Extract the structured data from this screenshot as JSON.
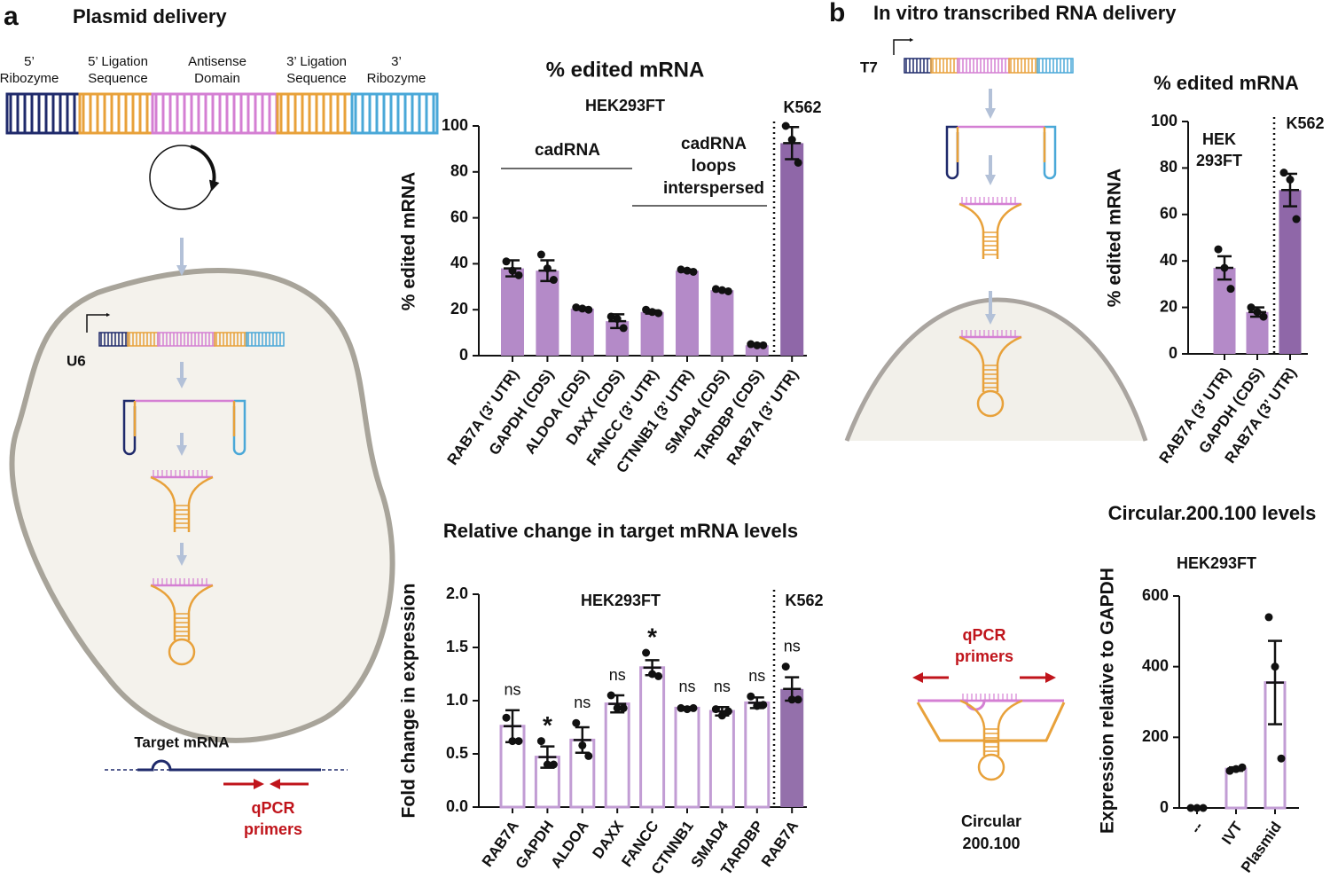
{
  "panel_a": {
    "letter": "a",
    "title": "Plasmid delivery",
    "construct_labels": [
      [
        "5’",
        "Ribozyme"
      ],
      [
        "5’ Ligation",
        "Sequence"
      ],
      [
        "Antisense",
        "Domain"
      ],
      [
        "3’ Ligation",
        "Sequence"
      ],
      [
        "3’",
        "Ribozyme"
      ]
    ],
    "promoter": "U6",
    "target_label": "Target mRNA",
    "primer_label": [
      "qPCR",
      "primers"
    ]
  },
  "panel_b": {
    "letter": "b",
    "title": "In vitro transcribed RNA delivery",
    "promoter": "T7",
    "primer_label": [
      "qPCR",
      "primers"
    ],
    "construct_label": [
      "Circular",
      "200.100"
    ]
  },
  "chart_data": [
    {
      "type": "bar",
      "title": "% edited mRNA",
      "subtitle": [
        "HEK293FT"
      ],
      "annotation": "K562",
      "ylabel": "% edited mRNA",
      "group_labels": [
        [
          "cadRNA"
        ],
        [
          "cadRNA",
          "loops",
          "interspersed"
        ]
      ],
      "categories": [
        "RAB7A (3’ UTR)",
        "GAPDH (CDS)",
        "ALDOA (CDS)",
        "DAXX (CDS)",
        "FANCC (3’ UTR)",
        "CTNNB1 (3’ UTR)",
        "SMAD4 (CDS)",
        "TARDBP (CDS)",
        "RAB7A (3’ UTR)"
      ],
      "values": [
        38,
        37,
        20.5,
        15,
        19,
        37,
        28.5,
        4.5,
        92.5
      ],
      "errors": [
        3.5,
        4.5,
        0.5,
        3,
        0.7,
        0.5,
        0.4,
        0.3,
        7
      ],
      "points": [
        [
          41,
          37,
          35
        ],
        [
          44,
          38,
          33
        ],
        [
          21,
          20.5,
          20
        ],
        [
          17,
          16,
          12
        ],
        [
          20,
          19,
          18.5
        ],
        [
          37.5,
          37,
          36.5
        ],
        [
          29,
          28.5,
          28
        ],
        [
          5,
          4.5,
          4.5
        ],
        [
          100,
          94,
          84
        ]
      ],
      "colors": [
        "#b48ac8",
        "#b48ac8",
        "#b48ac8",
        "#b48ac8",
        "#b48ac8",
        "#b48ac8",
        "#b48ac8",
        "#b48ac8",
        "#8f67a8"
      ],
      "bar_styles": [
        "filled",
        "filled",
        "filled",
        "filled",
        "filled",
        "filled",
        "filled",
        "filled",
        "filled"
      ],
      "ylim": [
        0,
        100
      ],
      "yticks": [
        0,
        20,
        40,
        60,
        80,
        100
      ]
    },
    {
      "type": "bar",
      "title": "Relative change in target mRNA levels",
      "subtitle": [
        "HEK293FT"
      ],
      "annotation": "K562",
      "ylabel": "Fold change in expression",
      "categories": [
        "RAB7A",
        "GAPDH",
        "ALDOA",
        "DAXX",
        "FANCC",
        "CTNNB1",
        "SMAD4",
        "TARDBP",
        "RAB7A"
      ],
      "values": [
        0.76,
        0.47,
        0.63,
        0.97,
        1.31,
        0.93,
        0.9,
        0.98,
        1.11
      ],
      "errors": [
        0.15,
        0.1,
        0.12,
        0.08,
        0.07,
        0.01,
        0.04,
        0.05,
        0.11
      ],
      "points": [
        [
          0.84,
          0.62,
          0.62
        ],
        [
          0.62,
          0.4,
          0.4
        ],
        [
          0.79,
          0.58,
          0.48
        ],
        [
          1.05,
          0.93,
          0.93
        ],
        [
          1.45,
          1.25,
          1.23
        ],
        [
          0.93,
          0.92,
          0.93
        ],
        [
          0.92,
          0.86,
          0.9
        ],
        [
          1.04,
          0.95,
          0.96
        ],
        [
          1.32,
          1.01,
          1.01
        ]
      ],
      "significance": [
        "ns",
        "*",
        "ns",
        "ns",
        "*",
        "ns",
        "ns",
        "ns",
        "ns"
      ],
      "colors": [
        "#c29dd4",
        "#c29dd4",
        "#c29dd4",
        "#c29dd4",
        "#c29dd4",
        "#c29dd4",
        "#c29dd4",
        "#c29dd4",
        "#9470ab"
      ],
      "bar_styles": [
        "outline",
        "outline",
        "outline",
        "outline",
        "outline",
        "outline",
        "outline",
        "outline",
        "filled"
      ],
      "ylim": [
        0,
        2
      ],
      "yticks": [
        {
          "value": 0,
          "label": "0.0"
        },
        {
          "value": 0.5,
          "label": "0.5"
        },
        {
          "value": 1,
          "label": "1.0"
        },
        {
          "value": 1.5,
          "label": "1.5"
        },
        {
          "value": 2,
          "label": "2.0"
        }
      ]
    },
    {
      "type": "bar",
      "title": "% edited mRNA",
      "subtitle": [
        "HEK",
        "293FT"
      ],
      "annotation": "K562",
      "ylabel": "% edited mRNA",
      "categories": [
        "RAB7A (3’ UTR)",
        "GAPDH (CDS)",
        "RAB7A (3’ UTR)"
      ],
      "values": [
        37,
        18,
        70.5
      ],
      "errors": [
        5,
        2,
        7
      ],
      "points": [
        [
          45,
          37,
          28
        ],
        [
          20,
          18,
          16
        ],
        [
          78,
          75,
          58
        ]
      ],
      "colors": [
        "#b48ac8",
        "#b48ac8",
        "#8f67a8"
      ],
      "bar_styles": [
        "filled",
        "filled",
        "filled"
      ],
      "ylim": [
        0,
        100
      ],
      "yticks": [
        0,
        20,
        40,
        60,
        80,
        100
      ]
    },
    {
      "type": "bar",
      "title": "Circular.200.100 levels",
      "subtitle": [
        "HEK293FT"
      ],
      "ylabel": "Expression relative to GAPDH",
      "categories": [
        "--",
        "IVT",
        "Plasmid"
      ],
      "values": [
        0,
        110,
        355
      ],
      "errors": [
        0,
        5,
        118
      ],
      "points": [
        [
          0,
          0,
          0
        ],
        [
          105,
          110,
          115
        ],
        [
          540,
          400,
          140
        ]
      ],
      "colors": [
        "#c29dd4",
        "#c29dd4",
        "#c29dd4"
      ],
      "bar_styles": [
        "outline",
        "outline",
        "outline"
      ],
      "ylim": [
        0,
        600
      ],
      "yticks": [
        0,
        200,
        400,
        600
      ]
    }
  ]
}
